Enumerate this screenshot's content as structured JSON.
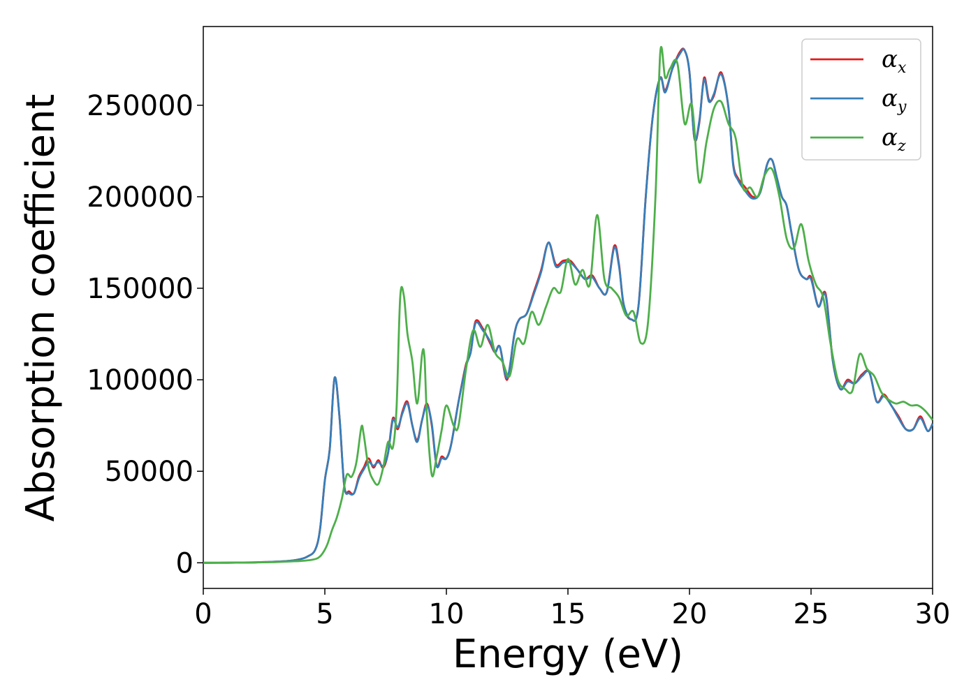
{
  "chart_data": {
    "type": "line",
    "xlabel": "Energy (eV)",
    "ylabel": "Absorption coefficient",
    "xlim": [
      0,
      30
    ],
    "ylim": [
      -14000,
      293000
    ],
    "xticks": [
      0,
      5,
      10,
      15,
      20,
      25,
      30
    ],
    "yticks": [
      0,
      50000,
      100000,
      150000,
      200000,
      250000
    ],
    "grid": false,
    "legend_position": "top-right",
    "series": [
      {
        "name": "α",
        "subscript": "x",
        "color": "#e41a1c",
        "x": [
          0,
          1,
          2,
          3,
          3.5,
          4,
          4.3,
          4.6,
          4.8,
          5,
          5.2,
          5.4,
          5.6,
          5.8,
          6,
          6.2,
          6.4,
          6.6,
          6.8,
          7,
          7.2,
          7.4,
          7.6,
          7.8,
          8,
          8.2,
          8.4,
          8.6,
          8.8,
          9,
          9.2,
          9.4,
          9.6,
          9.8,
          10,
          10.2,
          10.5,
          10.8,
          11,
          11.2,
          11.5,
          11.8,
          12,
          12.2,
          12.5,
          12.8,
          13,
          13.3,
          13.6,
          13.9,
          14.2,
          14.5,
          14.8,
          15.1,
          15.4,
          15.7,
          16,
          16.3,
          16.6,
          16.9,
          17.1,
          17.3,
          17.6,
          17.9,
          18.2,
          18.5,
          18.8,
          19,
          19.3,
          19.6,
          19.8,
          20,
          20.2,
          20.4,
          20.6,
          20.8,
          21,
          21.3,
          21.6,
          21.8,
          22,
          22.3,
          22.6,
          22.9,
          23.2,
          23.4,
          23.6,
          23.8,
          24,
          24.2,
          24.5,
          24.8,
          25,
          25.3,
          25.6,
          25.9,
          26.2,
          26.5,
          26.8,
          27.1,
          27.4,
          27.7,
          28,
          28.3,
          28.6,
          28.9,
          29.2,
          29.5,
          29.8,
          30
        ],
        "y": [
          0,
          50,
          200,
          600,
          1000,
          2000,
          3500,
          7000,
          18000,
          45000,
          62000,
          101000,
          80000,
          42000,
          39000,
          38000,
          47000,
          52000,
          57000,
          52000,
          56000,
          52000,
          60000,
          79000,
          73000,
          83000,
          88000,
          75000,
          67000,
          78000,
          87000,
          75000,
          53000,
          58000,
          57000,
          65000,
          88000,
          108000,
          115000,
          132000,
          128000,
          120000,
          115000,
          118000,
          100000,
          125000,
          133000,
          136000,
          148000,
          160000,
          175000,
          163000,
          165000,
          165000,
          160000,
          155000,
          157000,
          150000,
          148000,
          173000,
          163000,
          140000,
          133000,
          140000,
          200000,
          245000,
          265000,
          258000,
          270000,
          279000,
          280000,
          268000,
          232000,
          240000,
          265000,
          253000,
          255000,
          268000,
          249000,
          218000,
          210000,
          205000,
          200000,
          202000,
          218000,
          220000,
          210000,
          200000,
          195000,
          180000,
          160000,
          155000,
          156000,
          140000,
          147000,
          110000,
          95000,
          100000,
          98000,
          103000,
          104000,
          88000,
          92000,
          86000,
          80000,
          73000,
          73000,
          80000,
          72000,
          76000
        ]
      },
      {
        "name": "α",
        "subscript": "y",
        "color": "#377eb8",
        "x": [
          0,
          1,
          2,
          3,
          3.5,
          4,
          4.3,
          4.6,
          4.8,
          5,
          5.2,
          5.4,
          5.6,
          5.8,
          6,
          6.2,
          6.4,
          6.6,
          6.8,
          7,
          7.2,
          7.4,
          7.6,
          7.8,
          8,
          8.2,
          8.4,
          8.6,
          8.8,
          9,
          9.2,
          9.4,
          9.6,
          9.8,
          10,
          10.2,
          10.5,
          10.8,
          11,
          11.2,
          11.5,
          11.8,
          12,
          12.2,
          12.5,
          12.8,
          13,
          13.3,
          13.6,
          13.9,
          14.2,
          14.5,
          14.8,
          15.1,
          15.4,
          15.7,
          16,
          16.3,
          16.6,
          16.9,
          17.1,
          17.3,
          17.6,
          17.9,
          18.2,
          18.5,
          18.8,
          19,
          19.3,
          19.6,
          19.8,
          20,
          20.2,
          20.4,
          20.6,
          20.8,
          21,
          21.3,
          21.6,
          21.8,
          22,
          22.3,
          22.6,
          22.9,
          23.2,
          23.4,
          23.6,
          23.8,
          24,
          24.2,
          24.5,
          24.8,
          25,
          25.3,
          25.6,
          25.9,
          26.2,
          26.5,
          26.8,
          27.1,
          27.4,
          27.7,
          28,
          28.3,
          28.6,
          28.9,
          29.2,
          29.5,
          29.8,
          30
        ],
        "y": [
          0,
          50,
          200,
          600,
          1000,
          2000,
          3500,
          7000,
          18000,
          45000,
          62000,
          101000,
          80000,
          42000,
          38000,
          38000,
          46000,
          51000,
          55000,
          53000,
          55000,
          53000,
          60000,
          78000,
          74000,
          82000,
          87000,
          75000,
          66000,
          78000,
          86000,
          76000,
          53000,
          57000,
          57000,
          65000,
          88000,
          107000,
          115000,
          131000,
          127000,
          121000,
          115000,
          118000,
          101000,
          125000,
          133000,
          136000,
          147000,
          159000,
          175000,
          162000,
          164000,
          164000,
          160000,
          155000,
          156000,
          150000,
          148000,
          172000,
          162000,
          141000,
          133000,
          140000,
          200000,
          245000,
          265000,
          257000,
          270000,
          278000,
          280000,
          268000,
          232000,
          241000,
          264000,
          252000,
          256000,
          267000,
          249000,
          217000,
          209000,
          203000,
          199000,
          202000,
          218000,
          220000,
          210000,
          200000,
          195000,
          180000,
          160000,
          155000,
          155000,
          140000,
          146000,
          110000,
          95000,
          99000,
          98000,
          102000,
          104000,
          88000,
          91000,
          86000,
          79000,
          73000,
          73000,
          79000,
          72000,
          76000
        ]
      },
      {
        "name": "α",
        "subscript": "z",
        "color": "#4daf4a",
        "x": [
          0,
          1,
          2,
          3,
          3.5,
          4,
          4.4,
          4.7,
          4.9,
          5.1,
          5.3,
          5.5,
          5.7,
          5.9,
          6.1,
          6.3,
          6.5,
          6.6,
          6.8,
          7,
          7.2,
          7.4,
          7.6,
          7.8,
          7.95,
          8.1,
          8.25,
          8.4,
          8.6,
          8.8,
          9,
          9.1,
          9.2,
          9.4,
          9.6,
          9.8,
          10,
          10.3,
          10.5,
          10.8,
          11.1,
          11.4,
          11.7,
          12,
          12.3,
          12.6,
          12.9,
          13.2,
          13.5,
          13.8,
          14.1,
          14.4,
          14.7,
          15,
          15.3,
          15.6,
          15.9,
          16.2,
          16.5,
          16.8,
          17.1,
          17.4,
          17.7,
          18,
          18.3,
          18.6,
          18.8,
          19,
          19.2,
          19.5,
          19.8,
          20.1,
          20.4,
          20.7,
          21,
          21.3,
          21.6,
          21.9,
          22.2,
          22.5,
          22.8,
          23.1,
          23.4,
          23.7,
          24,
          24.3,
          24.6,
          24.9,
          25.2,
          25.5,
          25.8,
          26.1,
          26.4,
          26.7,
          27,
          27.3,
          27.6,
          27.9,
          28.2,
          28.5,
          28.8,
          29.1,
          29.4,
          29.7,
          30
        ],
        "y": [
          0,
          40,
          150,
          400,
          700,
          1000,
          1500,
          2500,
          5000,
          10000,
          18000,
          25000,
          35000,
          48000,
          47000,
          55000,
          74000,
          70000,
          52000,
          45000,
          43000,
          52000,
          66000,
          63000,
          85000,
          145000,
          146000,
          125000,
          110000,
          87000,
          114000,
          112000,
          80000,
          48000,
          58000,
          72000,
          86000,
          75000,
          75000,
          105000,
          127000,
          118000,
          130000,
          115000,
          110000,
          102000,
          122000,
          120000,
          137000,
          130000,
          140000,
          150000,
          148000,
          166000,
          152000,
          160000,
          152000,
          190000,
          155000,
          150000,
          145000,
          135000,
          137000,
          120000,
          132000,
          200000,
          279000,
          265000,
          270000,
          273000,
          240000,
          250000,
          208000,
          230000,
          248000,
          252000,
          240000,
          232000,
          205000,
          205000,
          200000,
          212000,
          215000,
          200000,
          177000,
          172000,
          185000,
          165000,
          152000,
          145000,
          120000,
          100000,
          95000,
          94000,
          114000,
          106000,
          102000,
          93000,
          89000,
          87000,
          88000,
          86000,
          86000,
          83000,
          78000
        ]
      }
    ]
  }
}
